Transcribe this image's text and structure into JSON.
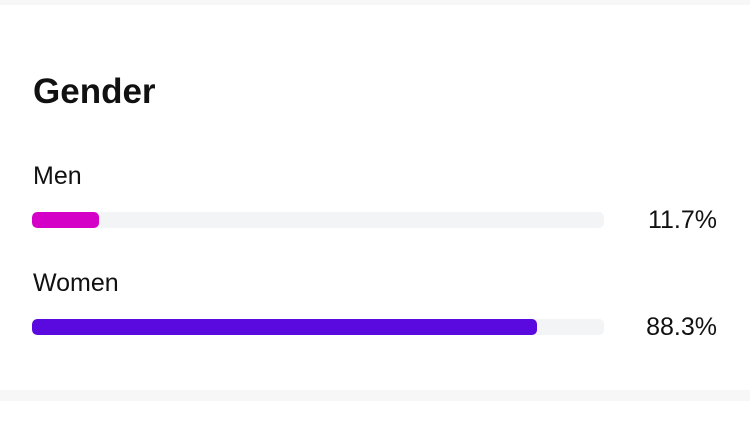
{
  "title": "Gender",
  "items": [
    {
      "label": "Men",
      "percent_text": "11.7%",
      "value": 11.7,
      "color": "#d400c8"
    },
    {
      "label": "Women",
      "percent_text": "88.3%",
      "value": 88.3,
      "color": "#5a0ade"
    }
  ],
  "track_color": "#f3f4f6"
}
